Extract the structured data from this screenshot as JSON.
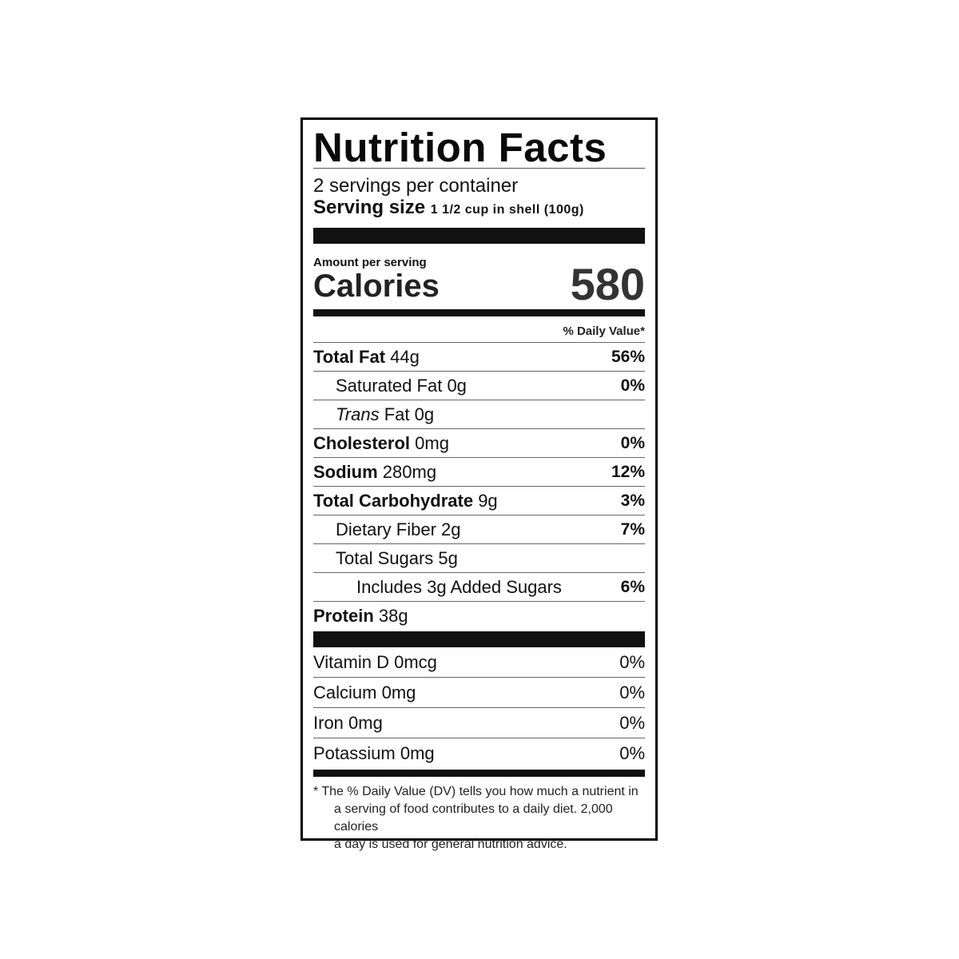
{
  "title": "Nutrition Facts",
  "servings_per_container": "2 servings per container",
  "serving_size_label": "Serving size",
  "serving_size_value": "1 1/2 cup in shell (100g)",
  "amount_per_serving": "Amount per serving",
  "calories_label": "Calories",
  "calories_value": "580",
  "daily_value_header": "% Daily Value*",
  "nutrients": [
    {
      "label": "Total Fat",
      "amount": "44g",
      "dv": "56%"
    },
    {
      "label": "Saturated Fat",
      "amount": "0g",
      "dv": "0%"
    },
    {
      "label": "Trans",
      "label2": "Fat",
      "amount": "0g",
      "dv": ""
    },
    {
      "label": "Cholesterol",
      "amount": "0mg",
      "dv": "0%"
    },
    {
      "label": "Sodium",
      "amount": "280mg",
      "dv": "12%"
    },
    {
      "label": "Total Carbohydrate",
      "amount": "9g",
      "dv": "3%"
    },
    {
      "label": "Dietary Fiber",
      "amount": "2g",
      "dv": "7%"
    },
    {
      "label": "Total Sugars",
      "amount": "5g",
      "dv": ""
    },
    {
      "label": "Includes",
      "amount": "3g",
      "label2": "Added Sugars",
      "dv": "6%"
    },
    {
      "label": "Protein",
      "amount": "38g",
      "dv": ""
    }
  ],
  "vitamins": [
    {
      "label": "Vitamin D",
      "amount": "0mcg",
      "dv": "0%"
    },
    {
      "label": "Calcium",
      "amount": "0mg",
      "dv": "0%"
    },
    {
      "label": "Iron",
      "amount": "0mg",
      "dv": "0%"
    },
    {
      "label": "Potassium",
      "amount": "0mg",
      "dv": "0%"
    }
  ],
  "footnote": {
    "line1": "* The % Daily Value (DV) tells you how much a nutrient in",
    "line2": "a serving of food contributes to a daily diet. 2,000 calories",
    "line3": "a day is used for general nutrition advice."
  }
}
